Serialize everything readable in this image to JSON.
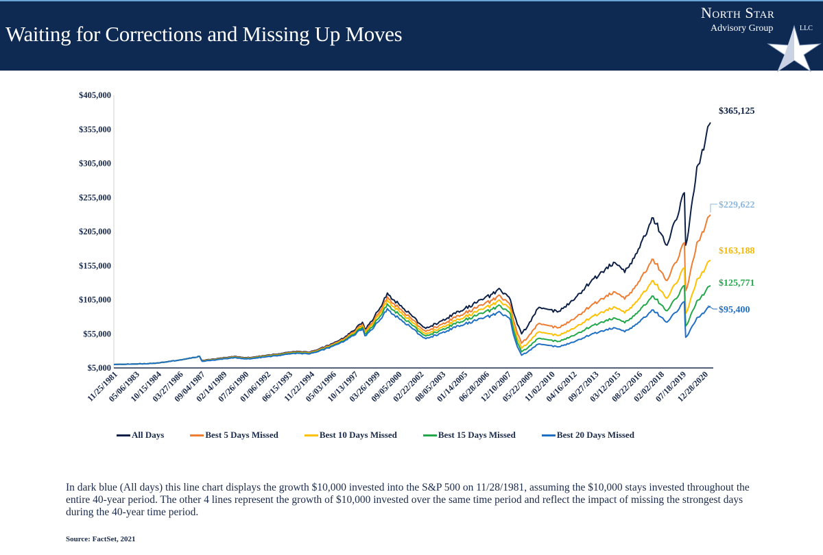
{
  "header": {
    "title": "Waiting for Corrections and Missing Up Moves",
    "logo_text": "North Star Advisory Group LLC",
    "logo_line1": "North Star",
    "logo_line2": "Advisory Group",
    "logo_line3": "LLC"
  },
  "chart_data": {
    "type": "line",
    "title": "",
    "xlabel": "",
    "ylabel": "",
    "ylim": [
      5000,
      405000
    ],
    "yticks": [
      "$5,000",
      "$55,000",
      "$105,000",
      "$155,000",
      "$205,000",
      "$255,000",
      "$305,000",
      "$355,000",
      "$405,000"
    ],
    "ytick_values": [
      5000,
      55000,
      105000,
      155000,
      205000,
      255000,
      305000,
      355000,
      405000
    ],
    "xlim": [
      "1981-11",
      "2021-11"
    ],
    "xticks": [
      "11/25/1981",
      "05/06/1983",
      "10/15/1984",
      "03/27/1986",
      "09/04/1987",
      "02/14/1989",
      "07/26/1990",
      "01/06/1992",
      "06/15/1993",
      "11/22/1994",
      "05/03/1996",
      "10/13/1997",
      "03/26/1999",
      "09/05/2000",
      "02/22/2002",
      "08/05/2003",
      "01/14/2005",
      "06/28/2006",
      "12/10/2007",
      "05/22/2009",
      "11/02/2010",
      "04/16/2012",
      "09/27/2013",
      "03/12/2015",
      "08/22/2016",
      "02/02/2018",
      "07/18/2019",
      "12/28/2020"
    ],
    "grid": false,
    "legend_position": "bottom",
    "x": [
      "1981-11",
      "1984-06",
      "1987-08",
      "1987-10",
      "1989-12",
      "1990-10",
      "1993-12",
      "1994-12",
      "1996-12",
      "1998-07",
      "1998-09",
      "2000-03",
      "2001-09",
      "2002-10",
      "2004-12",
      "2007-10",
      "2008-06",
      "2009-03",
      "2010-04",
      "2011-09",
      "2013-12",
      "2015-05",
      "2016-02",
      "2018-01",
      "2018-12",
      "2019-12",
      "2020-02",
      "2020-03",
      "2020-12",
      "2021-11"
    ],
    "series": [
      {
        "name": "All Days",
        "color": "#0c1f45",
        "end_label": "$365,125",
        "label_color": "#0c1f45",
        "values": [
          10000,
          11500,
          22000,
          16000,
          22000,
          20000,
          29000,
          28000,
          45000,
          72000,
          62000,
          115000,
          85000,
          63000,
          88000,
          120000,
          105000,
          55000,
          92000,
          88000,
          135000,
          160000,
          145000,
          225000,
          185000,
          255000,
          262000,
          185000,
          300000,
          365125
        ]
      },
      {
        "name": "Best 5 Days Missed",
        "color": "#ee7d31",
        "end_label": "$229,622",
        "label_color": "#8db8e0",
        "values": [
          10000,
          11500,
          22000,
          15500,
          21300,
          19400,
          28100,
          27200,
          43700,
          69100,
          58900,
          109300,
          79900,
          58600,
          81800,
          110400,
          96600,
          41300,
          69000,
          64200,
          98600,
          116800,
          105900,
          164300,
          133200,
          183600,
          188600,
          118400,
          189000,
          229622
        ]
      },
      {
        "name": "Best 10 Days Missed",
        "color": "#ffc000",
        "end_label": "$163,188",
        "label_color": "#f5b800",
        "values": [
          10000,
          11500,
          22000,
          15200,
          20900,
          19000,
          27600,
          26600,
          42300,
          67000,
          57000,
          104700,
          75700,
          54800,
          76600,
          103200,
          90300,
          34100,
          57000,
          52800,
          81000,
          94400,
          85600,
          132800,
          107300,
          147900,
          152000,
          85100,
          135000,
          163188
        ]
      },
      {
        "name": "Best 15 Days Missed",
        "color": "#22a84a",
        "end_label": "$125,771",
        "label_color": "#22a84a",
        "values": [
          10000,
          11500,
          22000,
          14900,
          20500,
          18600,
          27000,
          26000,
          41400,
          64800,
          54600,
          98900,
          71400,
          51700,
          72200,
          96000,
          84000,
          28600,
          47800,
          44000,
          67500,
          78400,
          71100,
          110300,
          88800,
          122400,
          125800,
          66600,
          103500,
          125771
        ]
      },
      {
        "name": "Best 20 Days Missed",
        "color": "#1f6fc5",
        "end_label": "$95,400",
        "label_color": "#1f6fc5",
        "values": [
          10000,
          11500,
          22000,
          14700,
          20200,
          18200,
          26400,
          25500,
          40500,
          62600,
          52100,
          92000,
          66300,
          47900,
          66900,
          86400,
          75600,
          23700,
          39600,
          36100,
          55400,
          64000,
          58000,
          90000,
          72200,
          99500,
          102200,
          50000,
          78600,
          95400
        ]
      }
    ]
  },
  "caption": "In dark blue (All days) this line chart displays the growth  $10,000 invested into the S&P 500 on 11/28/1981, assuming the $10,000 stays invested throughout the entire 40-year period. The other 4 lines represent the growth of $10,000 invested over the same time period and reflect the impact of missing the strongest days during the 40-year time period.",
  "source": "Source: FactSet, 2021"
}
